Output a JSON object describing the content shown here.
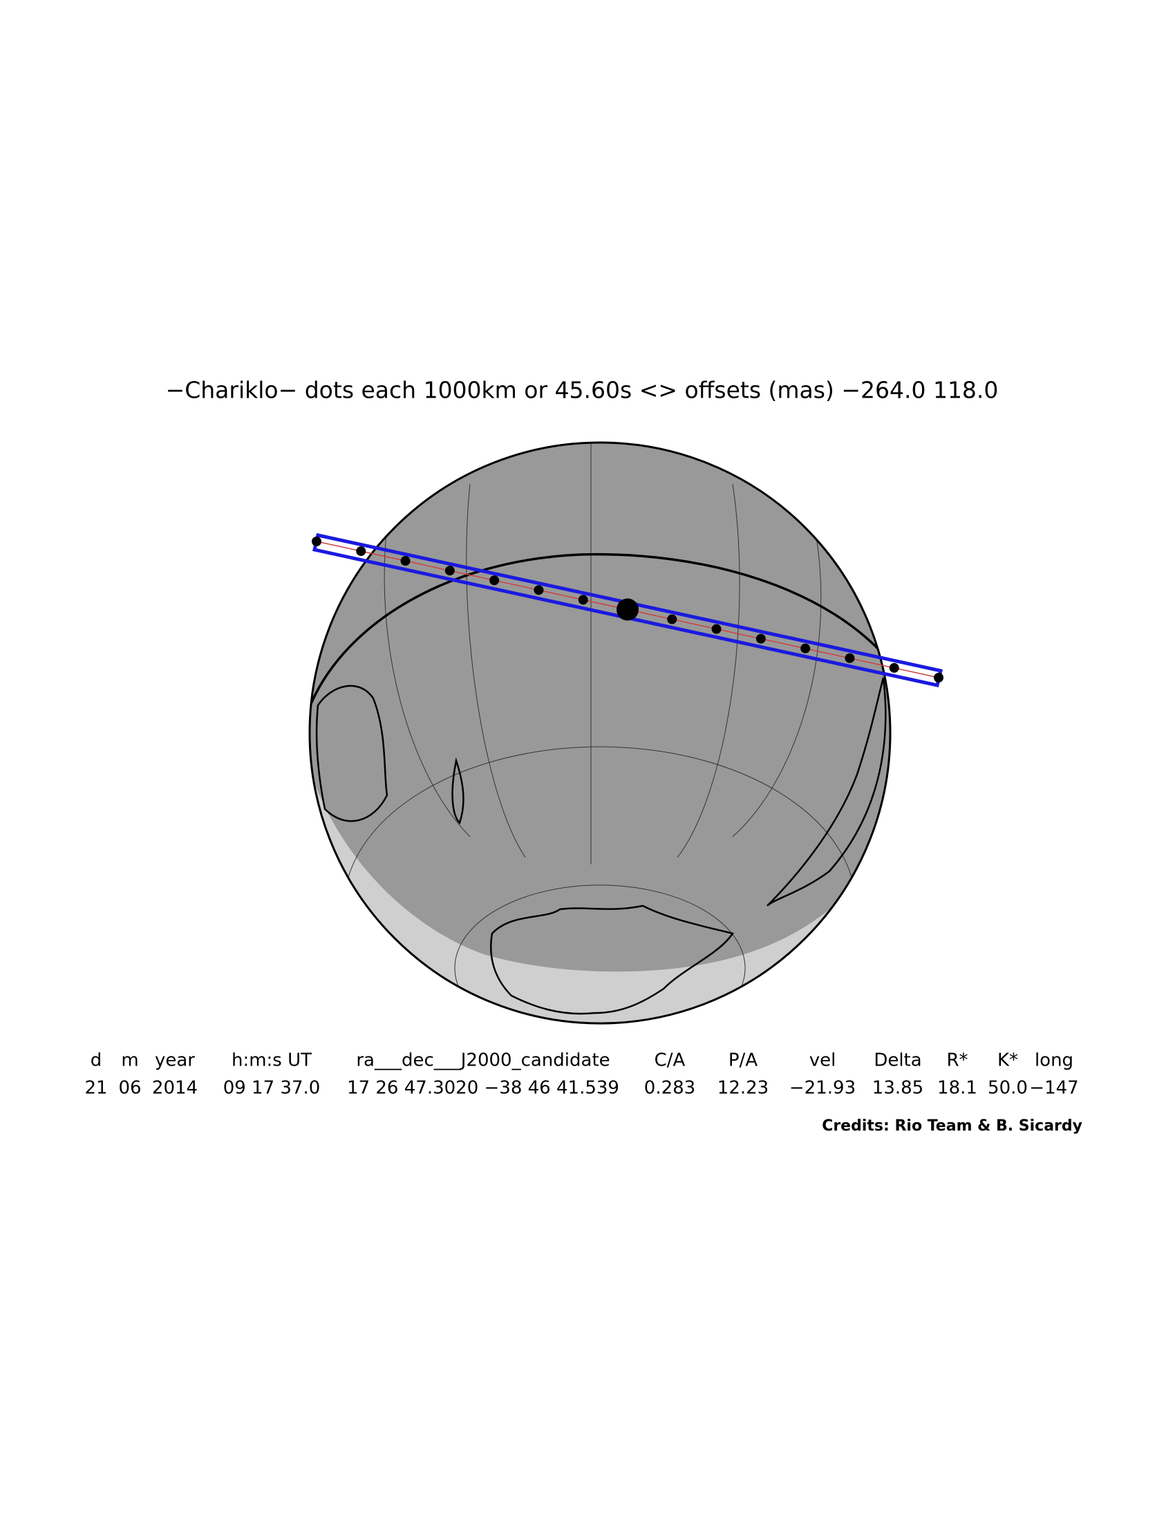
{
  "title": "−Chariklo− dots each 1000km or 45.60s <> offsets (mas) −264.0  118.0",
  "table": {
    "header": [
      "d",
      "m",
      "year",
      "h:m:s UT",
      "ra___dec___J2000_candidate",
      "C/A",
      "P/A",
      "vel",
      "Delta",
      "R*",
      "K*",
      "long"
    ],
    "row": [
      "21",
      "06",
      "2014",
      "09 17 37.0",
      "17 26 47.3020 −38 46 41.539",
      "0.283",
      "12.23",
      "−21.93",
      "13.85",
      "18.1",
      "50.0",
      "−147"
    ]
  },
  "credits": "Credits: Rio Team & B. Sicardy"
}
